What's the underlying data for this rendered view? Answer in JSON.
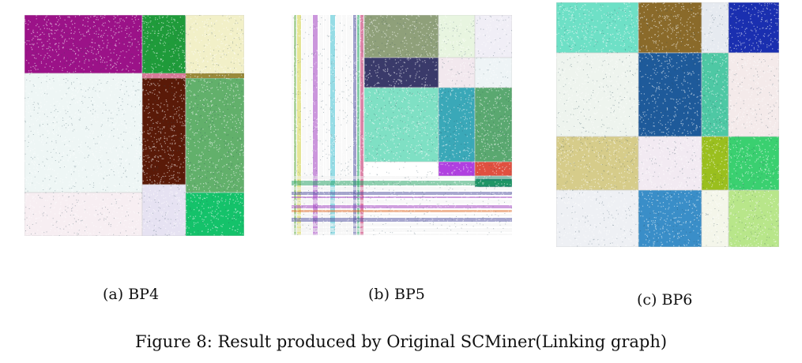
{
  "figure": {
    "caption": "Figure 8: Result produced by Original SCMiner(Linking graph)",
    "panels": [
      {
        "label": "(a) BP4",
        "blocks": [
          {
            "c": "#9b1288"
          },
          {
            "c": "#1f9b3a"
          },
          {
            "c": "#f2f0c8"
          },
          {
            "c": "#eef6f5"
          },
          {
            "c": "#5a1a08"
          },
          {
            "c": "#62b06b"
          },
          {
            "c": "#f7eef2"
          },
          {
            "c": "#e6e2f2"
          },
          {
            "c": "#14c26a"
          }
        ]
      },
      {
        "label": "(b) BP5",
        "blocks": [
          {
            "c": "#8fa07a"
          },
          {
            "c": "#e8f5e0"
          },
          {
            "c": "#f0eef6"
          },
          {
            "c": "#3a3a6a"
          },
          {
            "c": "#f2e8ee"
          },
          {
            "c": "#eef4f6"
          },
          {
            "c": "#7fe0c4"
          },
          {
            "c": "#3aa8b8"
          },
          {
            "c": "#5aa870"
          },
          {
            "c": "#b040e0"
          },
          {
            "c": "#e05040"
          },
          {
            "c": "#1e8a6a"
          }
        ]
      },
      {
        "label": "(c) BP6",
        "blocks": [
          {
            "c": "#6ee0c6"
          },
          {
            "c": "#8a6a2a"
          },
          {
            "c": "#e6eaf0"
          },
          {
            "c": "#1a2fb0"
          },
          {
            "c": "#eef4ee"
          },
          {
            "c": "#1e5a9a"
          },
          {
            "c": "#4ec8a4"
          },
          {
            "c": "#f4eaea"
          },
          {
            "c": "#d6cc8a"
          },
          {
            "c": "#f2eaf2"
          },
          {
            "c": "#9abf1e"
          },
          {
            "c": "#3ad070"
          },
          {
            "c": "#eef0f4"
          },
          {
            "c": "#3a8ec8"
          },
          {
            "c": "#f4f6ea"
          },
          {
            "c": "#b8e68a"
          }
        ]
      }
    ]
  }
}
